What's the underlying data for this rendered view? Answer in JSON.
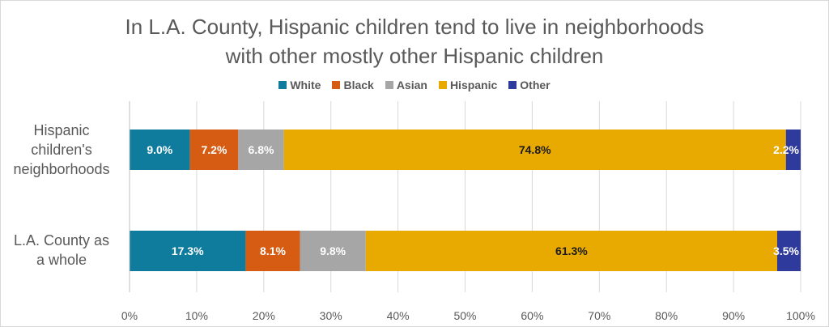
{
  "chart_data": {
    "type": "bar",
    "orientation": "horizontal",
    "stacked": true,
    "title_line1": "In L.A. County, Hispanic children tend to live in neighborhoods",
    "title_line2": "with other mostly other Hispanic children",
    "categories": [
      {
        "line1": "Hispanic",
        "line2": "children's",
        "line3": "neighborhoods"
      },
      {
        "line1": "L.A. County as",
        "line2": "a whole"
      }
    ],
    "series": [
      {
        "name": "White",
        "color": "#0F7C9E",
        "label_color": "#ffffff",
        "values": [
          9.0,
          17.3
        ],
        "labels": [
          "9.0%",
          "17.3%"
        ]
      },
      {
        "name": "Black",
        "color": "#D55C12",
        "label_color": "#ffffff",
        "values": [
          7.2,
          8.1
        ],
        "labels": [
          "7.2%",
          "8.1%"
        ]
      },
      {
        "name": "Asian",
        "color": "#A6A6A6",
        "label_color": "#ffffff",
        "values": [
          6.8,
          9.8
        ],
        "labels": [
          "6.8%",
          "9.8%"
        ]
      },
      {
        "name": "Hispanic",
        "color": "#E8AA00",
        "label_color": "#1a1a1a",
        "values": [
          74.8,
          61.3
        ],
        "labels": [
          "74.8%",
          "61.3%"
        ]
      },
      {
        "name": "Other",
        "color": "#2E3A9C",
        "label_color": "#ffffff",
        "values": [
          2.2,
          3.5
        ],
        "labels": [
          "2.2%",
          "3.5%"
        ]
      }
    ],
    "xlim": [
      0,
      100
    ],
    "xticks": [
      "0%",
      "10%",
      "20%",
      "30%",
      "40%",
      "50%",
      "60%",
      "70%",
      "80%",
      "90%",
      "100%"
    ],
    "grid": true,
    "legend_position": "top-center"
  }
}
